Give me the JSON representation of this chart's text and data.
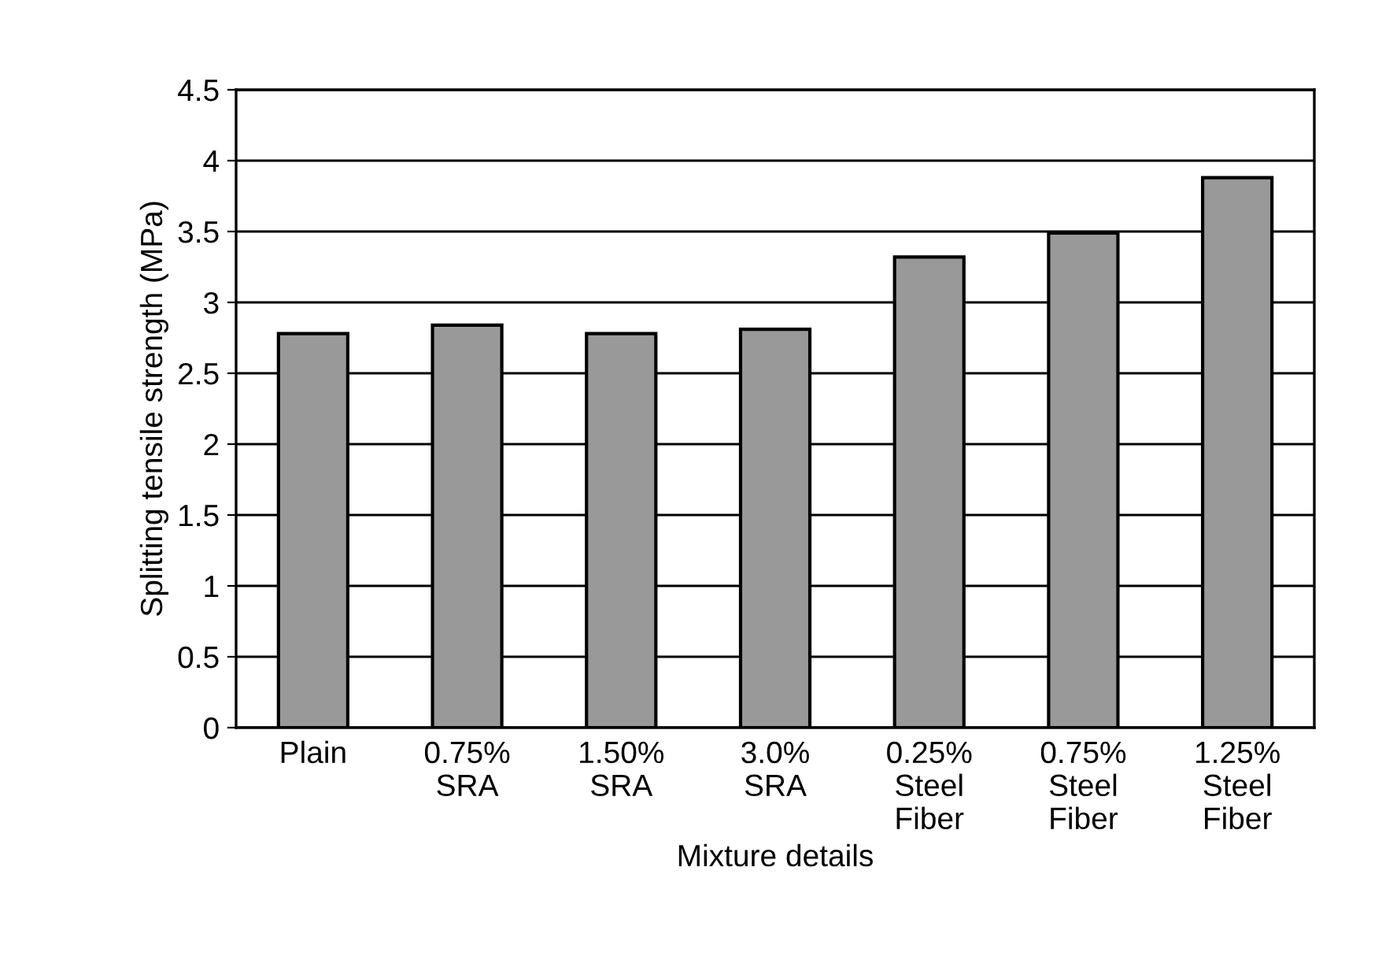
{
  "chart_data": {
    "type": "bar",
    "xlabel": "Mixture details",
    "ylabel": "Splitting tensile strength (MPa)",
    "categories": [
      "Plain",
      "0.75%\nSRA",
      "1.50%\nSRA",
      "3.0%\nSRA",
      "0.25%\nSteel\nFiber",
      "0.75%\nSteel\nFiber",
      "1.25%\nSteel\nFiber"
    ],
    "values": [
      2.78,
      2.84,
      2.78,
      2.81,
      3.32,
      3.49,
      3.88
    ],
    "color": "#999999",
    "ylim": [
      0,
      4.5
    ],
    "yticks": [
      0,
      0.5,
      1,
      1.5,
      2,
      2.5,
      3,
      3.5,
      4,
      4.5
    ],
    "grid": "y",
    "legend": false
  }
}
